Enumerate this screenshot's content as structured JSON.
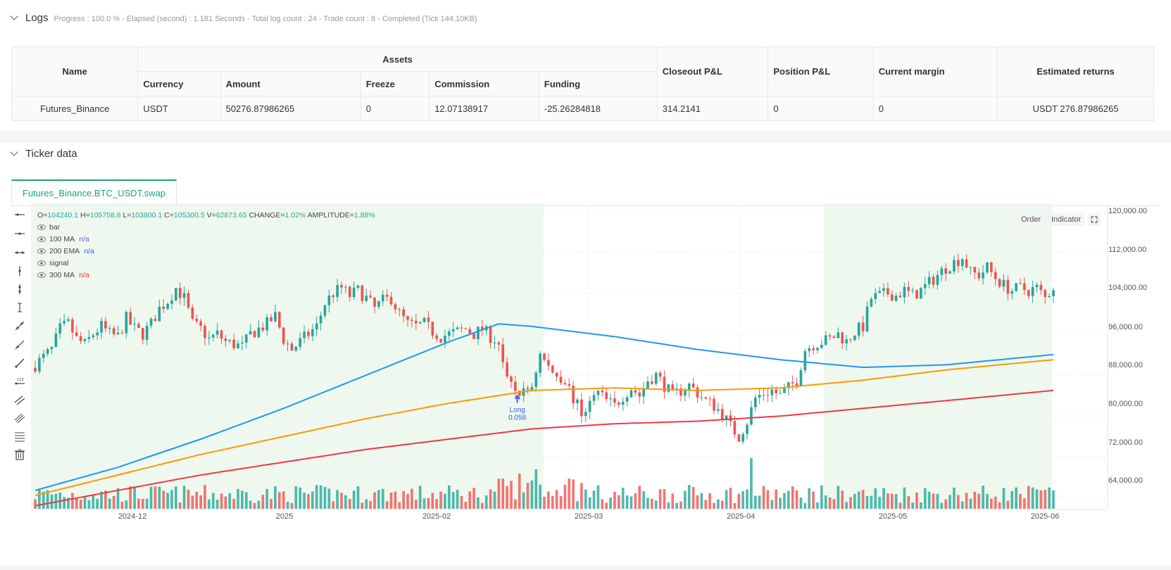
{
  "logs": {
    "title": "Logs",
    "status": "Progress : 100.0 % - Elapsed (second) : 1.181  Seconds - Total log count : 24 - Trade count : 8 - Completed (Tick 144.10KB)"
  },
  "assets_table": {
    "headers": {
      "name": "Name",
      "assets": "Assets",
      "currency": "Currency",
      "amount": "Amount",
      "freeze": "Freeze",
      "commission": "Commission",
      "funding": "Funding",
      "closeout_pnl": "Closeout P&L",
      "position_pnl": "Position P&L",
      "current_margin": "Current margin",
      "estimated_returns": "Estimated returns"
    },
    "row": {
      "name": "Futures_Binance",
      "currency": "USDT",
      "amount": "50276.87986265",
      "freeze": "0",
      "commission": "12.07138917",
      "funding": "-25.26284818",
      "closeout_pnl": "314.2141",
      "position_pnl": "0",
      "current_margin": "0",
      "estimated_returns": "USDT 276.87986265"
    }
  },
  "ticker": {
    "title": "Ticker data",
    "tab": "Futures_Binance.BTC_USDT.swap",
    "ohlc": {
      "o_label": "O=",
      "o": "104240.1",
      "h_label": "H=",
      "h": "105758.8",
      "l_label": "L=",
      "l": "103800.1",
      "c_label": "C=",
      "c": "105300.5",
      "v_label": "V=",
      "v": "62873.65",
      "change_label": "CHANGE=",
      "change": "1.02%",
      "amplitude_label": "AMPLITUDE=",
      "amplitude": "1.88%"
    },
    "legend": [
      {
        "name": "bar",
        "value": ""
      },
      {
        "name": "100 MA",
        "value": "n/a",
        "color": "#7e57c2"
      },
      {
        "name": "200 EMA",
        "value": "n/a",
        "color": "#2962ff"
      },
      {
        "name": "signal",
        "value": ""
      },
      {
        "name": "300 MA",
        "value": "n/a",
        "color": "#e53935"
      }
    ],
    "buttons": {
      "order": "Order",
      "indicator": "Indicator"
    },
    "trade_marker": {
      "label": "Long",
      "qty": "0.058"
    },
    "colors": {
      "up": "#26a69a",
      "down": "#ef5350",
      "ma_blue": "#2196f3",
      "ma_orange": "#ff9800",
      "ma_red": "#f23645",
      "shade": "#e8f5e9"
    }
  },
  "chart_data": {
    "type": "candlestick",
    "y_ticks": [
      "120,000.00",
      "112,000.00",
      "104,000.00",
      "96,000.00",
      "88,000.00",
      "80,000.00",
      "72,000.00",
      "64,000.00"
    ],
    "x_ticks": [
      "2024-12",
      "2025",
      "2025-02",
      "2025-03",
      "2025-04",
      "2025-05",
      "2025-06"
    ],
    "ylim": [
      56000,
      121500
    ],
    "price_path": [
      [
        0,
        90000
      ],
      [
        4,
        93000
      ],
      [
        6,
        97000
      ],
      [
        8,
        98000
      ],
      [
        10,
        95000
      ],
      [
        12,
        94000
      ],
      [
        14,
        96000
      ],
      [
        16,
        97500
      ],
      [
        18,
        96000
      ],
      [
        20,
        95500
      ],
      [
        22,
        99000
      ],
      [
        24,
        97000
      ],
      [
        26,
        96000
      ],
      [
        28,
        98000
      ],
      [
        30,
        101000
      ],
      [
        32,
        102500
      ],
      [
        34,
        105000
      ],
      [
        36,
        103000
      ],
      [
        38,
        98000
      ],
      [
        40,
        97000
      ],
      [
        42,
        95000
      ],
      [
        44,
        96000
      ],
      [
        46,
        94500
      ],
      [
        48,
        94000
      ],
      [
        50,
        93500
      ],
      [
        52,
        96000
      ],
      [
        54,
        97000
      ],
      [
        56,
        98000
      ],
      [
        58,
        99500
      ],
      [
        60,
        95000
      ],
      [
        62,
        93000
      ],
      [
        64,
        94500
      ],
      [
        66,
        96000
      ],
      [
        68,
        97500
      ],
      [
        70,
        102000
      ],
      [
        72,
        104000
      ],
      [
        74,
        105000
      ],
      [
        76,
        103500
      ],
      [
        78,
        104500
      ],
      [
        80,
        103000
      ],
      [
        82,
        101000
      ],
      [
        84,
        102500
      ],
      [
        86,
        103000
      ],
      [
        88,
        100000
      ],
      [
        90,
        98000
      ],
      [
        92,
        97500
      ],
      [
        94,
        98000
      ],
      [
        96,
        96500
      ],
      [
        98,
        95500
      ],
      [
        100,
        96000
      ],
      [
        102,
        96500
      ],
      [
        104,
        97000
      ],
      [
        106,
        96000
      ],
      [
        108,
        97000
      ],
      [
        110,
        95500
      ],
      [
        112,
        94500
      ],
      [
        114,
        86500
      ],
      [
        116,
        85000
      ],
      [
        118,
        84500
      ],
      [
        120,
        86000
      ],
      [
        122,
        92000
      ],
      [
        124,
        89500
      ],
      [
        126,
        88000
      ],
      [
        128,
        87000
      ],
      [
        130,
        83500
      ],
      [
        132,
        80500
      ],
      [
        134,
        82500
      ],
      [
        136,
        84500
      ],
      [
        138,
        83000
      ],
      [
        140,
        82000
      ],
      [
        142,
        84000
      ],
      [
        144,
        85500
      ],
      [
        146,
        84000
      ],
      [
        148,
        87000
      ],
      [
        150,
        88000
      ],
      [
        152,
        86000
      ],
      [
        154,
        84000
      ],
      [
        156,
        85000
      ],
      [
        158,
        86000
      ],
      [
        160,
        84500
      ],
      [
        162,
        83000
      ],
      [
        164,
        82000
      ],
      [
        166,
        80500
      ],
      [
        168,
        78000
      ],
      [
        170,
        76000
      ],
      [
        172,
        79000
      ],
      [
        174,
        83500
      ],
      [
        176,
        84500
      ],
      [
        178,
        85000
      ],
      [
        180,
        84000
      ],
      [
        182,
        85500
      ],
      [
        184,
        87000
      ],
      [
        186,
        93000
      ],
      [
        188,
        94000
      ],
      [
        190,
        94500
      ],
      [
        192,
        95000
      ],
      [
        194,
        96000
      ],
      [
        196,
        94500
      ],
      [
        198,
        96500
      ],
      [
        200,
        97500
      ],
      [
        202,
        103000
      ],
      [
        204,
        103500
      ],
      [
        206,
        104000
      ],
      [
        208,
        103500
      ],
      [
        210,
        104500
      ],
      [
        212,
        103500
      ],
      [
        214,
        104500
      ],
      [
        216,
        106000
      ],
      [
        218,
        107500
      ],
      [
        220,
        109000
      ],
      [
        222,
        110000
      ],
      [
        224,
        111000
      ],
      [
        226,
        108000
      ],
      [
        228,
        107500
      ],
      [
        230,
        109000
      ],
      [
        232,
        107000
      ],
      [
        234,
        105500
      ],
      [
        236,
        104500
      ],
      [
        238,
        105000
      ],
      [
        240,
        104500
      ],
      [
        242,
        105000
      ],
      [
        244,
        103000
      ],
      [
        246,
        105300
      ]
    ],
    "series": [
      {
        "name": "100 MA",
        "points": [
          [
            0,
            65500
          ],
          [
            20,
            70000
          ],
          [
            40,
            75500
          ],
          [
            60,
            81500
          ],
          [
            80,
            88000
          ],
          [
            100,
            94500
          ],
          [
            112,
            98000
          ],
          [
            120,
            97500
          ],
          [
            140,
            95500
          ],
          [
            160,
            93000
          ],
          [
            180,
            91000
          ],
          [
            200,
            89500
          ],
          [
            220,
            90000
          ],
          [
            246,
            92000
          ]
        ]
      },
      {
        "name": "200 EMA",
        "points": [
          [
            0,
            64500
          ],
          [
            20,
            68500
          ],
          [
            40,
            72500
          ],
          [
            60,
            76000
          ],
          [
            80,
            79500
          ],
          [
            100,
            82500
          ],
          [
            120,
            85000
          ],
          [
            140,
            85500
          ],
          [
            160,
            85000
          ],
          [
            180,
            85500
          ],
          [
            200,
            87000
          ],
          [
            220,
            89000
          ],
          [
            246,
            91000
          ]
        ]
      },
      {
        "name": "300 MA",
        "points": [
          [
            0,
            62500
          ],
          [
            20,
            65500
          ],
          [
            40,
            68500
          ],
          [
            60,
            71000
          ],
          [
            80,
            73500
          ],
          [
            100,
            75500
          ],
          [
            120,
            77500
          ],
          [
            140,
            78500
          ],
          [
            160,
            79000
          ],
          [
            180,
            80000
          ],
          [
            200,
            81500
          ],
          [
            220,
            83000
          ],
          [
            246,
            85000
          ]
        ]
      }
    ]
  }
}
